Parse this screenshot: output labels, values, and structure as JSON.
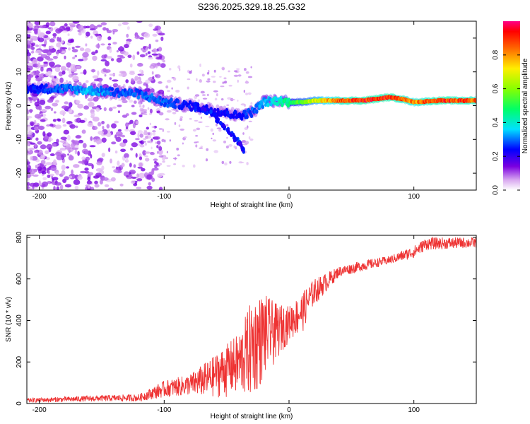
{
  "title": "S236.2025.329.18.25.G32",
  "spectrogram": {
    "type": "heatmap",
    "xlabel": "Height of straight line (km)",
    "ylabel": "Frequency (Hz)",
    "xlim": [
      -210,
      150
    ],
    "ylim": [
      -25,
      25
    ],
    "xticks": [
      -200,
      -100,
      0,
      100
    ],
    "yticks": [
      -20,
      -10,
      0,
      10,
      20
    ],
    "colorbar": {
      "label": "Normalized spectral amplitude",
      "range": [
        0.0,
        1.0
      ],
      "ticks": [
        0.0,
        0.2,
        0.4,
        0.6,
        0.8
      ]
    },
    "trace": [
      {
        "x": -210,
        "y": 5,
        "amp": 0.25
      },
      {
        "x": -180,
        "y": 5,
        "amp": 0.3
      },
      {
        "x": -160,
        "y": 4.5,
        "amp": 0.35
      },
      {
        "x": -140,
        "y": 4,
        "amp": 0.3
      },
      {
        "x": -120,
        "y": 3.5,
        "amp": 0.3
      },
      {
        "x": -100,
        "y": 1,
        "amp": 0.3
      },
      {
        "x": -80,
        "y": 0,
        "amp": 0.25
      },
      {
        "x": -60,
        "y": -1.5,
        "amp": 0.25
      },
      {
        "x": -40,
        "y": -3,
        "amp": 0.25
      },
      {
        "x": -30,
        "y": -2,
        "amp": 0.3
      },
      {
        "x": -20,
        "y": 1,
        "amp": 0.35
      },
      {
        "x": -10,
        "y": 1.5,
        "amp": 0.4
      },
      {
        "x": 0,
        "y": 1,
        "amp": 0.5
      },
      {
        "x": 10,
        "y": 1,
        "amp": 0.6
      },
      {
        "x": 20,
        "y": 1.5,
        "amp": 0.7
      },
      {
        "x": 40,
        "y": 1.5,
        "amp": 0.9
      },
      {
        "x": 60,
        "y": 1.5,
        "amp": 0.95
      },
      {
        "x": 80,
        "y": 2.5,
        "amp": 0.95
      },
      {
        "x": 90,
        "y": 2,
        "amp": 0.9
      },
      {
        "x": 100,
        "y": 1,
        "amp": 0.85
      },
      {
        "x": 120,
        "y": 1.5,
        "amp": 0.95
      },
      {
        "x": 150,
        "y": 1.5,
        "amp": 0.9
      }
    ],
    "secondary_branch": [
      {
        "x": -75,
        "y": 0
      },
      {
        "x": -60,
        "y": -3
      },
      {
        "x": -50,
        "y": -7
      },
      {
        "x": -40,
        "y": -11
      },
      {
        "x": -35,
        "y": -14
      }
    ]
  },
  "snr_panel": {
    "type": "line",
    "xlabel": "Height of straight line (km)",
    "ylabel": "SNR (10 * v/v)",
    "xlim": [
      -210,
      150
    ],
    "ylim": [
      0,
      810
    ],
    "xticks": [
      -200,
      -100,
      0,
      100
    ],
    "yticks": [
      0,
      200,
      400,
      600,
      800
    ],
    "color": "#ee3333",
    "envelope": [
      {
        "x": -210,
        "low": 5,
        "high": 25
      },
      {
        "x": -150,
        "low": 10,
        "high": 40
      },
      {
        "x": -120,
        "low": 10,
        "high": 45
      },
      {
        "x": -100,
        "low": 30,
        "high": 110
      },
      {
        "x": -80,
        "low": 40,
        "high": 140
      },
      {
        "x": -60,
        "low": 30,
        "high": 230
      },
      {
        "x": -40,
        "low": 20,
        "high": 340
      },
      {
        "x": -30,
        "low": 10,
        "high": 500
      },
      {
        "x": -20,
        "low": 100,
        "high": 530
      },
      {
        "x": -10,
        "low": 200,
        "high": 480
      },
      {
        "x": 0,
        "low": 300,
        "high": 470
      },
      {
        "x": 10,
        "low": 330,
        "high": 530
      },
      {
        "x": 20,
        "low": 470,
        "high": 600
      },
      {
        "x": 40,
        "low": 610,
        "high": 660
      },
      {
        "x": 60,
        "low": 640,
        "high": 690
      },
      {
        "x": 80,
        "low": 670,
        "high": 710
      },
      {
        "x": 100,
        "low": 700,
        "high": 760
      },
      {
        "x": 110,
        "low": 740,
        "high": 800
      },
      {
        "x": 150,
        "low": 750,
        "high": 800
      }
    ]
  }
}
